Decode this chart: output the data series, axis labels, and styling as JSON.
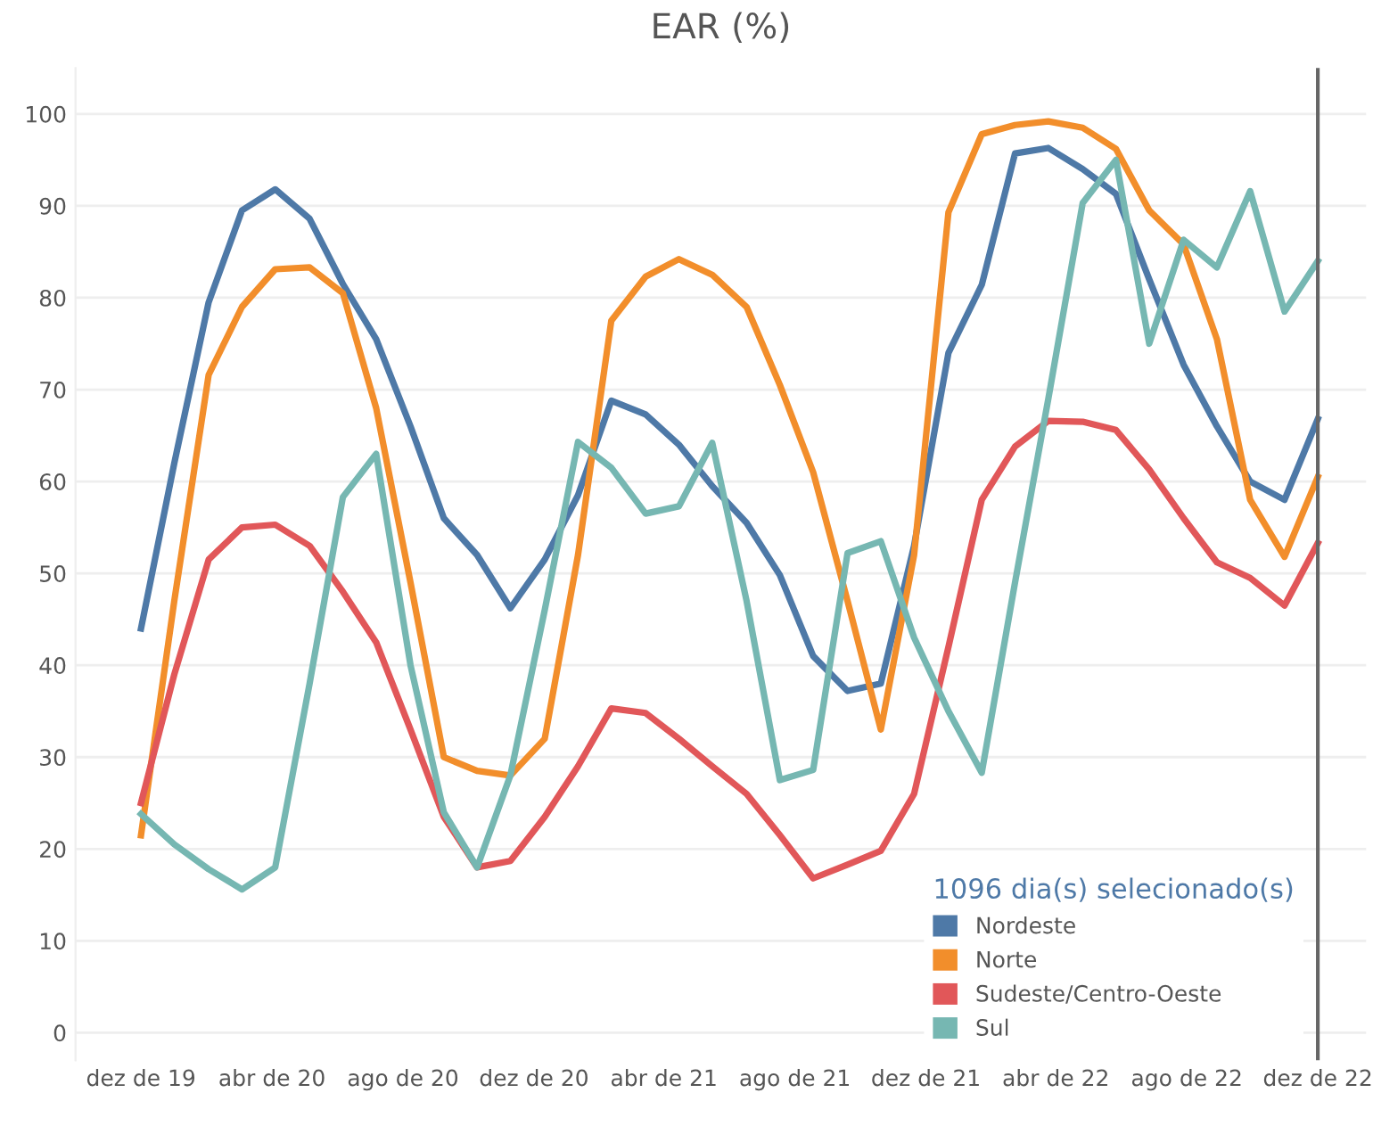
{
  "chart_data": {
    "type": "line",
    "title": "EAR (%)",
    "x": [
      "2019-12-01",
      "2020-01-01",
      "2020-02-02",
      "2020-03-04",
      "2020-04-04",
      "2020-05-06",
      "2020-06-06",
      "2020-07-07",
      "2020-08-08",
      "2020-09-08",
      "2020-10-09",
      "2020-11-09",
      "2020-12-11",
      "2021-01-11",
      "2021-02-11",
      "2021-03-15",
      "2021-04-15",
      "2021-05-16",
      "2021-06-17",
      "2021-07-18",
      "2021-08-18",
      "2021-09-19",
      "2021-10-20",
      "2021-11-20",
      "2021-12-22",
      "2022-01-22",
      "2022-02-22",
      "2022-03-25",
      "2022-04-26",
      "2022-05-27",
      "2022-06-27",
      "2022-07-29",
      "2022-08-29",
      "2022-09-29",
      "2022-10-31",
      "2022-12-01"
    ],
    "series": [
      {
        "name": "Nordeste",
        "color": "#4e79a7",
        "values": [
          44,
          62,
          79.5,
          89.5,
          91.8,
          88.6,
          81.5,
          75.5,
          66,
          56,
          52,
          46.2,
          51.5,
          58.5,
          68.8,
          67.3,
          64,
          59.5,
          55.5,
          49.8,
          41,
          37.2,
          38,
          53,
          74,
          81.4,
          95.7,
          96.3,
          94,
          91.3,
          82,
          72.7,
          66,
          60,
          58,
          66.8
        ]
      },
      {
        "name": "Norte",
        "color": "#f28e2b",
        "values": [
          21.5,
          47,
          71.6,
          79,
          83.1,
          83.3,
          80.5,
          68,
          49,
          30,
          28.5,
          28,
          32,
          52,
          77.5,
          82.3,
          84.2,
          82.5,
          79,
          70.5,
          61,
          47,
          33,
          52,
          89.3,
          97.8,
          98.8,
          99.2,
          98.5,
          96.2,
          89.5,
          85.8,
          75.5,
          58,
          51.8,
          60.5
        ]
      },
      {
        "name": "Sudeste/Centro-Oeste",
        "color": "#e15759",
        "values": [
          25,
          39,
          51.5,
          55,
          55.3,
          53,
          48,
          42.5,
          33,
          23.5,
          18,
          18.7,
          23.5,
          29,
          35.3,
          34.8,
          32,
          29,
          26,
          21.5,
          16.8,
          18.3,
          19.8,
          26,
          42,
          58,
          63.8,
          66.6,
          66.5,
          65.6,
          61.3,
          56,
          51.2,
          49.5,
          46.5,
          53.3
        ]
      },
      {
        "name": "Sul",
        "color": "#76b7b2",
        "values": [
          23.8,
          20.5,
          17.8,
          15.6,
          18,
          38,
          58.3,
          63,
          40,
          24,
          18,
          28,
          46,
          64.3,
          61.5,
          56.5,
          57.3,
          64.2,
          47,
          27.5,
          28.6,
          52.2,
          53.5,
          43,
          35,
          28.3,
          49,
          69,
          90.3,
          95,
          75,
          86.3,
          83.3,
          91.6,
          78.5,
          84
        ]
      }
    ],
    "xlim": [
      "2019-10-01",
      "2023-01-15"
    ],
    "xticks": [
      {
        "value": "2019-12-01",
        "label": "dez de 19"
      },
      {
        "value": "2020-04-01",
        "label": "abr de 20"
      },
      {
        "value": "2020-08-01",
        "label": "ago de 20"
      },
      {
        "value": "2020-12-01",
        "label": "dez de 20"
      },
      {
        "value": "2021-04-01",
        "label": "abr de 21"
      },
      {
        "value": "2021-08-01",
        "label": "ago de 21"
      },
      {
        "value": "2021-12-01",
        "label": "dez de 21"
      },
      {
        "value": "2022-04-01",
        "label": "abr de 22"
      },
      {
        "value": "2022-08-01",
        "label": "ago de 22"
      },
      {
        "value": "2022-12-01",
        "label": "dez de 22"
      }
    ],
    "ylim": [
      -3,
      105
    ],
    "yticks": [
      0,
      10,
      20,
      30,
      40,
      50,
      60,
      70,
      80,
      90,
      100
    ],
    "grid": "y",
    "legend": "bottom right",
    "legend_title": "1096 dia(s) selecionado(s)",
    "ref_lines": [
      {
        "axis": "x",
        "value": "2022-12-01",
        "label": null,
        "color": "#666666"
      }
    ],
    "marker": "none",
    "line_style": "solid"
  }
}
